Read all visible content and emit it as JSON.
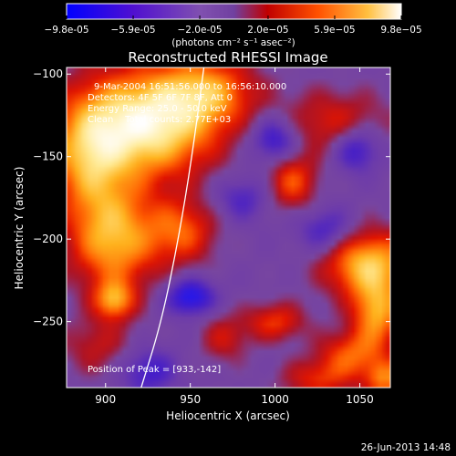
{
  "chart_data": {
    "type": "heatmap",
    "title": "Reconstructed RHESSI Image",
    "xlabel": "Heliocentric X (arcsec)",
    "ylabel": "Heliocentric Y (arcsec)",
    "xlim": [
      877,
      1068
    ],
    "ylim": [
      -290,
      -96
    ],
    "xticks": [
      900,
      950,
      1000,
      1050
    ],
    "yticks": [
      -100,
      -150,
      -200,
      -250
    ],
    "colorbar": {
      "ticks": [
        "-9.8e-05",
        "-5.9e-05",
        "-2.0e-05",
        "2.0e-05",
        "5.9e-05",
        "9.8e-05"
      ],
      "label": "(photons cm⁻² s⁻¹ asec⁻²)",
      "range": [
        -9.8e-05,
        9.8e-05
      ]
    },
    "annotations": [
      "9-Mar-2004 16:51:56.000 to 16:56:10.000",
      "Detectors: 4F 5F 6F 7F 8F, Att 0",
      "Energy Range: 25.0 - 50.0 keV",
      "Clean    Total counts: 2.77E+03"
    ],
    "peak_label": "Position of Peak = [933,-142]",
    "peak": [
      933,
      -142
    ],
    "limb": [
      [
        921,
        -290
      ],
      [
        933,
        -250
      ],
      [
        943,
        -200
      ],
      [
        951,
        -150
      ],
      [
        958,
        -96
      ]
    ],
    "blobs": [
      {
        "x": 925,
        "y": -130,
        "sx": 28,
        "sy": 22,
        "a": 1.7
      },
      {
        "x": 960,
        "y": -110,
        "sx": 20,
        "sy": 14,
        "a": 0.9
      },
      {
        "x": 890,
        "y": -150,
        "sx": 16,
        "sy": 25,
        "a": 1.0
      },
      {
        "x": 905,
        "y": -200,
        "sx": 18,
        "sy": 22,
        "a": 1.2
      },
      {
        "x": 945,
        "y": -195,
        "sx": 14,
        "sy": 14,
        "a": 0.8
      },
      {
        "x": 1035,
        "y": -130,
        "sx": 22,
        "sy": 14,
        "a": 0.6
      },
      {
        "x": 1010,
        "y": -165,
        "sx": 10,
        "sy": 12,
        "a": 0.8
      },
      {
        "x": 1055,
        "y": -215,
        "sx": 18,
        "sy": 14,
        "a": 1.3
      },
      {
        "x": 1060,
        "y": -245,
        "sx": 10,
        "sy": 14,
        "a": 1.1
      },
      {
        "x": 1045,
        "y": -270,
        "sx": 14,
        "sy": 10,
        "a": 0.8
      },
      {
        "x": 1000,
        "y": -250,
        "sx": 12,
        "sy": 8,
        "a": 0.7
      },
      {
        "x": 970,
        "y": -260,
        "sx": 10,
        "sy": 10,
        "a": 0.5
      },
      {
        "x": 1025,
        "y": -285,
        "sx": 15,
        "sy": 8,
        "a": 0.6
      },
      {
        "x": 895,
        "y": -265,
        "sx": 14,
        "sy": 12,
        "a": 0.45
      },
      {
        "x": 1065,
        "y": -285,
        "sx": 8,
        "sy": 8,
        "a": 0.9
      },
      {
        "x": 905,
        "y": -237,
        "sx": 8,
        "sy": 8,
        "a": 1.0
      },
      {
        "x": 950,
        "y": -235,
        "sx": 10,
        "sy": 8,
        "a": -0.9
      },
      {
        "x": 1000,
        "y": -140,
        "sx": 10,
        "sy": 10,
        "a": -0.8
      },
      {
        "x": 1048,
        "y": -145,
        "sx": 10,
        "sy": 10,
        "a": -0.8
      },
      {
        "x": 980,
        "y": -175,
        "sx": 12,
        "sy": 10,
        "a": -0.5
      },
      {
        "x": 1030,
        "y": -195,
        "sx": 12,
        "sy": 10,
        "a": -0.6
      },
      {
        "x": 925,
        "y": -280,
        "sx": 12,
        "sy": 10,
        "a": -0.6
      }
    ]
  },
  "footer": {
    "timestamp": "26-Jun-2013 14:48"
  }
}
